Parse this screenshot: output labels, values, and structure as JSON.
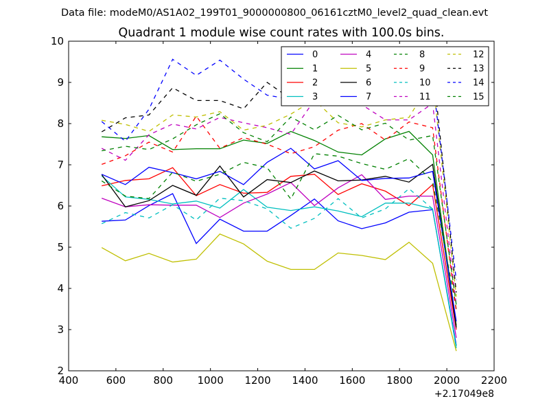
{
  "chart_data": {
    "type": "line",
    "supertitle": "Data file: modeM0/AS1A02_199T01_9000000800_06161cztM0_level2_quad_clean.evt",
    "title": "Quadrant 1 module wise count rates with 100.0s bins.",
    "xlabel": "",
    "ylabel": "",
    "x_offset_label": "+2.17049e8",
    "xlim": [
      400,
      2200
    ],
    "ylim": [
      2,
      10
    ],
    "xticks": [
      400,
      600,
      800,
      1000,
      1200,
      1400,
      1600,
      1800,
      2000,
      2200
    ],
    "yticks": [
      2,
      3,
      4,
      5,
      6,
      7,
      8,
      9,
      10
    ],
    "grid": false,
    "legend_position": "top-right",
    "legend_columns": 4,
    "x": [
      540,
      640,
      740,
      840,
      940,
      1040,
      1140,
      1240,
      1340,
      1440,
      1540,
      1640,
      1740,
      1840,
      1940,
      2040
    ],
    "series": [
      {
        "name": "0",
        "color": "#0000ff",
        "dash": "solid",
        "values": [
          5.63,
          5.66,
          6.01,
          6.3,
          5.09,
          5.68,
          5.39,
          5.39,
          5.77,
          6.17,
          5.64,
          5.45,
          5.59,
          5.85,
          5.91,
          2.62
        ]
      },
      {
        "name": "1",
        "color": "#008000",
        "dash": "solid",
        "values": [
          7.68,
          7.64,
          7.71,
          7.37,
          7.39,
          7.39,
          7.6,
          7.52,
          7.81,
          7.59,
          7.31,
          7.24,
          7.63,
          7.81,
          7.24,
          3.1
        ]
      },
      {
        "name": "2",
        "color": "#ff0000",
        "dash": "solid",
        "values": [
          6.49,
          6.62,
          6.66,
          6.93,
          6.25,
          6.52,
          6.31,
          6.33,
          6.72,
          6.77,
          6.28,
          6.54,
          6.36,
          6.01,
          6.52,
          3.0
        ]
      },
      {
        "name": "3",
        "color": "#00bfbf",
        "dash": "solid",
        "values": [
          6.73,
          6.22,
          6.16,
          6.05,
          6.12,
          5.95,
          6.4,
          5.97,
          5.89,
          5.98,
          5.88,
          5.74,
          6.07,
          6.07,
          5.93,
          2.55
        ]
      },
      {
        "name": "4",
        "color": "#bf00bf",
        "dash": "solid",
        "values": [
          6.19,
          5.98,
          6.03,
          6.02,
          6.02,
          5.72,
          6.07,
          6.29,
          6.57,
          6.01,
          6.44,
          6.76,
          6.16,
          6.24,
          6.24,
          2.8
        ]
      },
      {
        "name": "5",
        "color": "#bfbf00",
        "dash": "solid",
        "values": [
          4.99,
          4.67,
          4.85,
          4.64,
          4.71,
          5.32,
          5.08,
          4.66,
          4.46,
          4.46,
          4.86,
          4.8,
          4.7,
          5.12,
          4.61,
          2.48
        ]
      },
      {
        "name": "6",
        "color": "#000000",
        "dash": "solid",
        "values": [
          6.76,
          5.98,
          6.13,
          6.5,
          6.26,
          6.97,
          6.22,
          6.64,
          6.57,
          6.85,
          6.61,
          6.63,
          6.72,
          6.58,
          7.01,
          3.05
        ]
      },
      {
        "name": "7",
        "color": "#0000ff",
        "dash": "solid",
        "values": [
          6.77,
          6.52,
          6.94,
          6.81,
          6.66,
          6.84,
          6.52,
          7.06,
          7.4,
          6.9,
          7.1,
          6.62,
          6.67,
          6.68,
          6.84,
          3.2
        ]
      },
      {
        "name": "8",
        "color": "#008000",
        "dash": "dashed",
        "values": [
          6.61,
          6.24,
          6.18,
          6.82,
          6.6,
          6.77,
          7.06,
          6.93,
          6.17,
          7.27,
          7.21,
          7.03,
          6.89,
          7.15,
          6.6,
          3.5
        ]
      },
      {
        "name": "9",
        "color": "#ff0000",
        "dash": "dashed",
        "values": [
          7.01,
          7.22,
          7.55,
          7.31,
          8.18,
          7.4,
          7.66,
          7.5,
          7.27,
          7.44,
          7.84,
          8.0,
          7.6,
          8.04,
          7.9,
          3.45
        ]
      },
      {
        "name": "10",
        "color": "#00bfbf",
        "dash": "dashed",
        "values": [
          5.57,
          5.84,
          5.71,
          6.03,
          5.66,
          6.19,
          6.13,
          5.93,
          5.46,
          5.7,
          6.18,
          5.71,
          5.93,
          6.42,
          5.93,
          2.6
        ]
      },
      {
        "name": "11",
        "color": "#bf00bf",
        "dash": "dashed",
        "values": [
          7.4,
          7.11,
          7.73,
          7.99,
          7.87,
          8.15,
          8.02,
          7.9,
          7.74,
          8.57,
          8.5,
          8.46,
          8.09,
          8.09,
          8.49,
          3.6
        ]
      },
      {
        "name": "12",
        "color": "#bfbf00",
        "dash": "dashed",
        "values": [
          8.08,
          7.98,
          7.81,
          8.21,
          8.16,
          8.29,
          7.84,
          7.96,
          8.23,
          8.58,
          8.02,
          7.92,
          8.09,
          8.15,
          9.1,
          3.8
        ]
      },
      {
        "name": "13",
        "color": "#000000",
        "dash": "dashed",
        "values": [
          7.8,
          8.14,
          8.21,
          8.87,
          8.56,
          8.56,
          8.36,
          9.0,
          8.6,
          8.7,
          9.3,
          9.45,
          9.46,
          9.46,
          9.46,
          3.9
        ]
      },
      {
        "name": "14",
        "color": "#0000ff",
        "dash": "dashed",
        "values": [
          8.05,
          7.57,
          8.35,
          9.56,
          9.17,
          9.54,
          9.08,
          8.69,
          8.59,
          9.86,
          9.86,
          9.3,
          9.4,
          8.8,
          9.1,
          4.2
        ]
      },
      {
        "name": "15",
        "color": "#008000",
        "dash": "dashed",
        "values": [
          7.34,
          7.45,
          7.37,
          7.63,
          7.97,
          8.24,
          7.78,
          7.56,
          8.16,
          7.85,
          8.2,
          7.85,
          8.01,
          7.6,
          7.71,
          3.6
        ]
      }
    ]
  }
}
